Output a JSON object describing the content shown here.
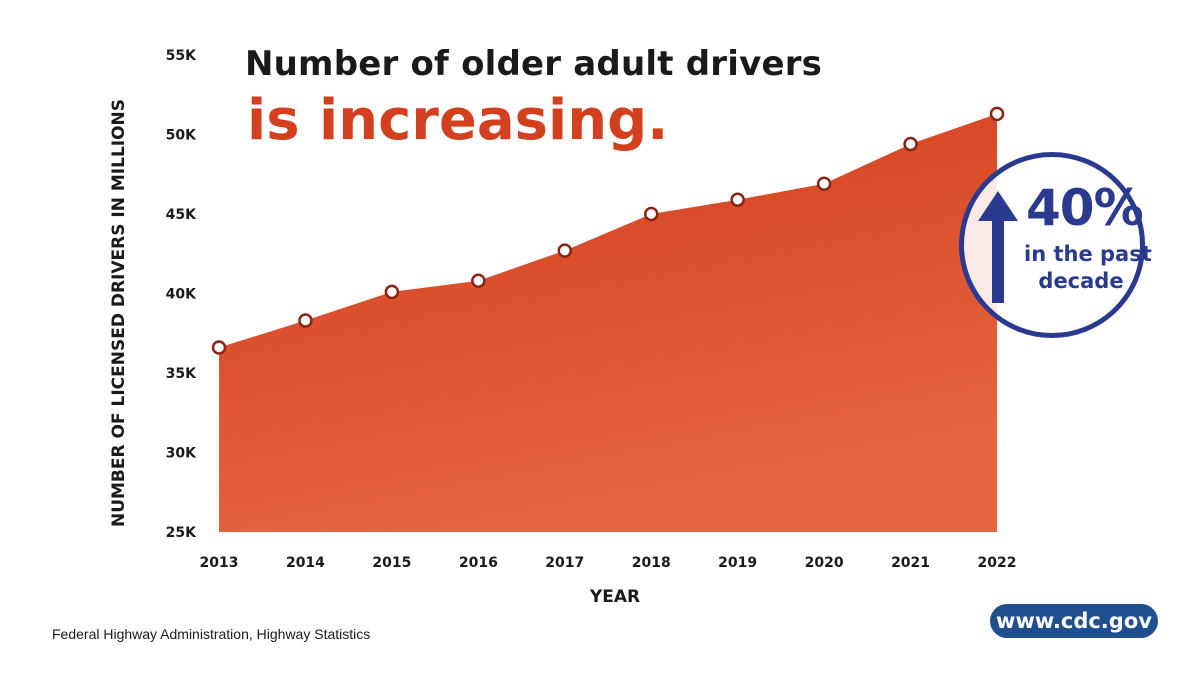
{
  "title_line1": "Number of older adult drivers",
  "title_line2": "is increasing.",
  "badge": {
    "percent": "40%",
    "line1": "in the past",
    "line2": "decade"
  },
  "source": "Federal Highway Administration, Highway Statistics",
  "website": "www.cdc.gov",
  "colors": {
    "accent": "#d24020",
    "area_top": "#d13c1c",
    "area_bottom": "#e5653f",
    "marker_stroke": "#8a2416",
    "navy": "#2a3b8f",
    "cdc_blue": "#1f4f8f"
  },
  "chart_data": {
    "type": "area",
    "xlabel": "YEAR",
    "ylabel": "NUMBER OF LICENSED DRIVERS IN MILLIONS",
    "ylim": [
      25000,
      55000
    ],
    "yticks": [
      25000,
      30000,
      35000,
      40000,
      45000,
      50000,
      55000
    ],
    "ytick_labels": [
      "25K",
      "30K",
      "35K",
      "40K",
      "45K",
      "50K",
      "55K"
    ],
    "categories": [
      "2013",
      "2014",
      "2015",
      "2016",
      "2017",
      "2018",
      "2019",
      "2020",
      "2021",
      "2022"
    ],
    "values": [
      36600,
      38300,
      40100,
      40800,
      42700,
      45000,
      45900,
      46900,
      49400,
      51300
    ],
    "markers": true,
    "grid": false,
    "legend": "none"
  }
}
